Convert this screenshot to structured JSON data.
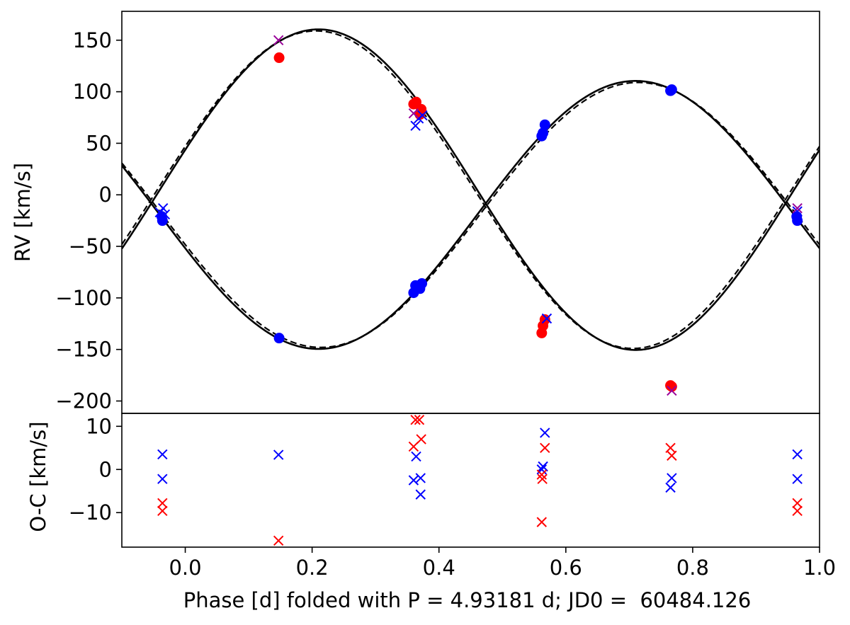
{
  "chart_data": [
    {
      "type": "scatter",
      "panel": "top",
      "ylabel": "RV [km/s]",
      "xlim": [
        -0.1,
        1.0
      ],
      "ylim": [
        -212,
        178
      ],
      "yticks": [
        150,
        100,
        50,
        0,
        -50,
        -100,
        -150,
        -200
      ],
      "ytick_labels": [
        "150",
        "100",
        "50",
        "0",
        "−50",
        "−100",
        "−150",
        "−200"
      ],
      "grid": false,
      "models": [
        {
          "style": "solid",
          "color": "#000000",
          "gamma": -19.5,
          "K": 130,
          "phi_max": 0.71,
          "sign": 1
        },
        {
          "style": "solid",
          "color": "#000000",
          "gamma": 5,
          "K": 155.5,
          "phi_max": 0.21,
          "sign": 1
        },
        {
          "style": "dashed",
          "color": "#000000",
          "gamma": -19.5,
          "K": 128.5,
          "phi_max": 0.714,
          "sign": 1
        },
        {
          "style": "dashed",
          "color": "#000000",
          "gamma": 5,
          "K": 154,
          "phi_max": 0.206,
          "sign": 1
        }
      ],
      "series": [
        {
          "marker": "circle",
          "color": "#0000ff",
          "points": [
            [
              -0.037,
              -21
            ],
            [
              -0.036,
              -25
            ],
            [
              0.148,
              -139
            ],
            [
              0.36,
              -95
            ],
            [
              0.363,
              -88
            ],
            [
              0.37,
              -91
            ],
            [
              0.373,
              -86
            ],
            [
              0.562,
              57
            ],
            [
              0.564,
              60
            ],
            [
              0.567,
              68
            ],
            [
              0.765,
              101
            ],
            [
              0.767,
              102
            ],
            [
              0.964,
              -21
            ],
            [
              0.965,
              -25
            ]
          ]
        },
        {
          "marker": "circle",
          "color": "#ff0000",
          "points": [
            [
              0.148,
              133
            ],
            [
              0.36,
              88
            ],
            [
              0.364,
              90
            ],
            [
              0.37,
              78
            ],
            [
              0.372,
              83
            ],
            [
              0.562,
              -134
            ],
            [
              0.564,
              -127
            ],
            [
              0.567,
              -121
            ],
            [
              0.765,
              -185
            ],
            [
              0.767,
              -186
            ]
          ]
        },
        {
          "marker": "x",
          "color": "#0000ff",
          "points": [
            [
              -0.04,
              -17
            ],
            [
              -0.035,
              -13
            ],
            [
              -0.032,
              -19
            ],
            [
              0.363,
              67
            ],
            [
              0.368,
              74
            ],
            [
              0.374,
              77
            ],
            [
              0.57,
              -120
            ],
            [
              0.965,
              -16
            ]
          ]
        },
        {
          "marker": "x",
          "color": "#990099",
          "points": [
            [
              0.147,
              150
            ],
            [
              0.36,
              79
            ],
            [
              0.767,
              -190
            ],
            [
              0.965,
              -13
            ]
          ]
        }
      ]
    },
    {
      "type": "scatter",
      "panel": "bottom",
      "ylabel": "O-C [km/s]",
      "xlabel": "Phase [d] folded with P = 4.93181 d; JD0 =  60484.126",
      "xlim": [
        -0.1,
        1.0
      ],
      "ylim": [
        -18,
        13
      ],
      "xticks": [
        0.0,
        0.2,
        0.4,
        0.6,
        0.8,
        1.0
      ],
      "xtick_labels": [
        "0.0",
        "0.2",
        "0.4",
        "0.6",
        "0.8",
        "1.0"
      ],
      "yticks": [
        10,
        0,
        -10
      ],
      "ytick_labels": [
        "10",
        "0",
        "−10"
      ],
      "grid": false,
      "series": [
        {
          "marker": "x",
          "color": "#0000ff",
          "points": [
            [
              -0.036,
              3.5
            ],
            [
              -0.036,
              -2.2
            ],
            [
              0.147,
              3.4
            ],
            [
              0.36,
              -2.5
            ],
            [
              0.364,
              3.0
            ],
            [
              0.371,
              -2.0
            ],
            [
              0.371,
              -5.8
            ],
            [
              0.562,
              0.0
            ],
            [
              0.564,
              0.7
            ],
            [
              0.567,
              8.5
            ],
            [
              0.765,
              -4.2
            ],
            [
              0.767,
              -2.0
            ],
            [
              0.965,
              3.5
            ],
            [
              0.965,
              -2.2
            ]
          ]
        },
        {
          "marker": "x",
          "color": "#ff0000",
          "points": [
            [
              -0.036,
              -7.8
            ],
            [
              -0.036,
              -9.6
            ],
            [
              0.147,
              -16.5
            ],
            [
              0.36,
              5.3
            ],
            [
              0.363,
              11.5
            ],
            [
              0.369,
              11.5
            ],
            [
              0.372,
              7.0
            ],
            [
              0.562,
              -1.2
            ],
            [
              0.563,
              -2.2
            ],
            [
              0.562,
              -12.2
            ],
            [
              0.567,
              5.0
            ],
            [
              0.765,
              5.0
            ],
            [
              0.767,
              3.2
            ],
            [
              0.965,
              -7.8
            ],
            [
              0.965,
              -9.6
            ]
          ]
        }
      ]
    }
  ]
}
